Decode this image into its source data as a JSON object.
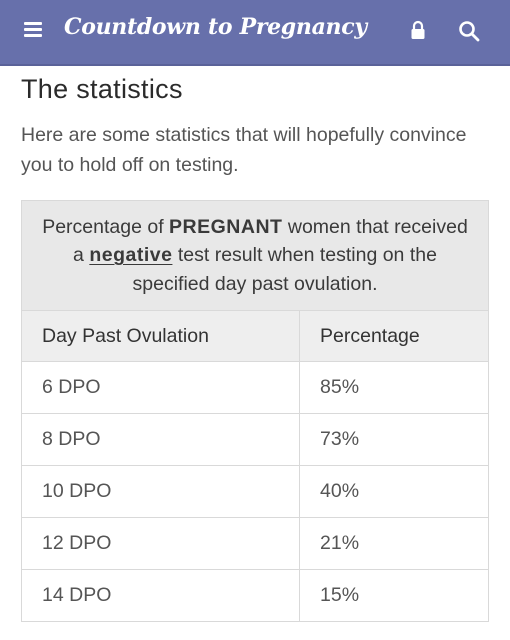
{
  "app": {
    "title": "Countdown to Pregnancy"
  },
  "colors": {
    "topbar": "#6770ab",
    "table_header": "#e8e8e8"
  },
  "page": {
    "heading": "The statistics",
    "intro": "Here are some statistics that will hopefully convince you to hold off on testing."
  },
  "table": {
    "caption": {
      "part1": "Percentage of ",
      "emph1": "PREGNANT",
      "part2": " women that received a ",
      "emph2": "negative",
      "part3": " test result when testing on the specified day past ovulation."
    },
    "columns": [
      "Day Past Ovulation",
      "Percentage"
    ],
    "rows": [
      {
        "day": "6 DPO",
        "pct": "85%"
      },
      {
        "day": "8 DPO",
        "pct": "73%"
      },
      {
        "day": "10 DPO",
        "pct": "40%"
      },
      {
        "day": "12 DPO",
        "pct": "21%"
      },
      {
        "day": "14 DPO",
        "pct": "15%"
      }
    ]
  },
  "icons": {
    "menu": "menu-icon",
    "lock": "lock-icon",
    "search": "search-icon"
  }
}
